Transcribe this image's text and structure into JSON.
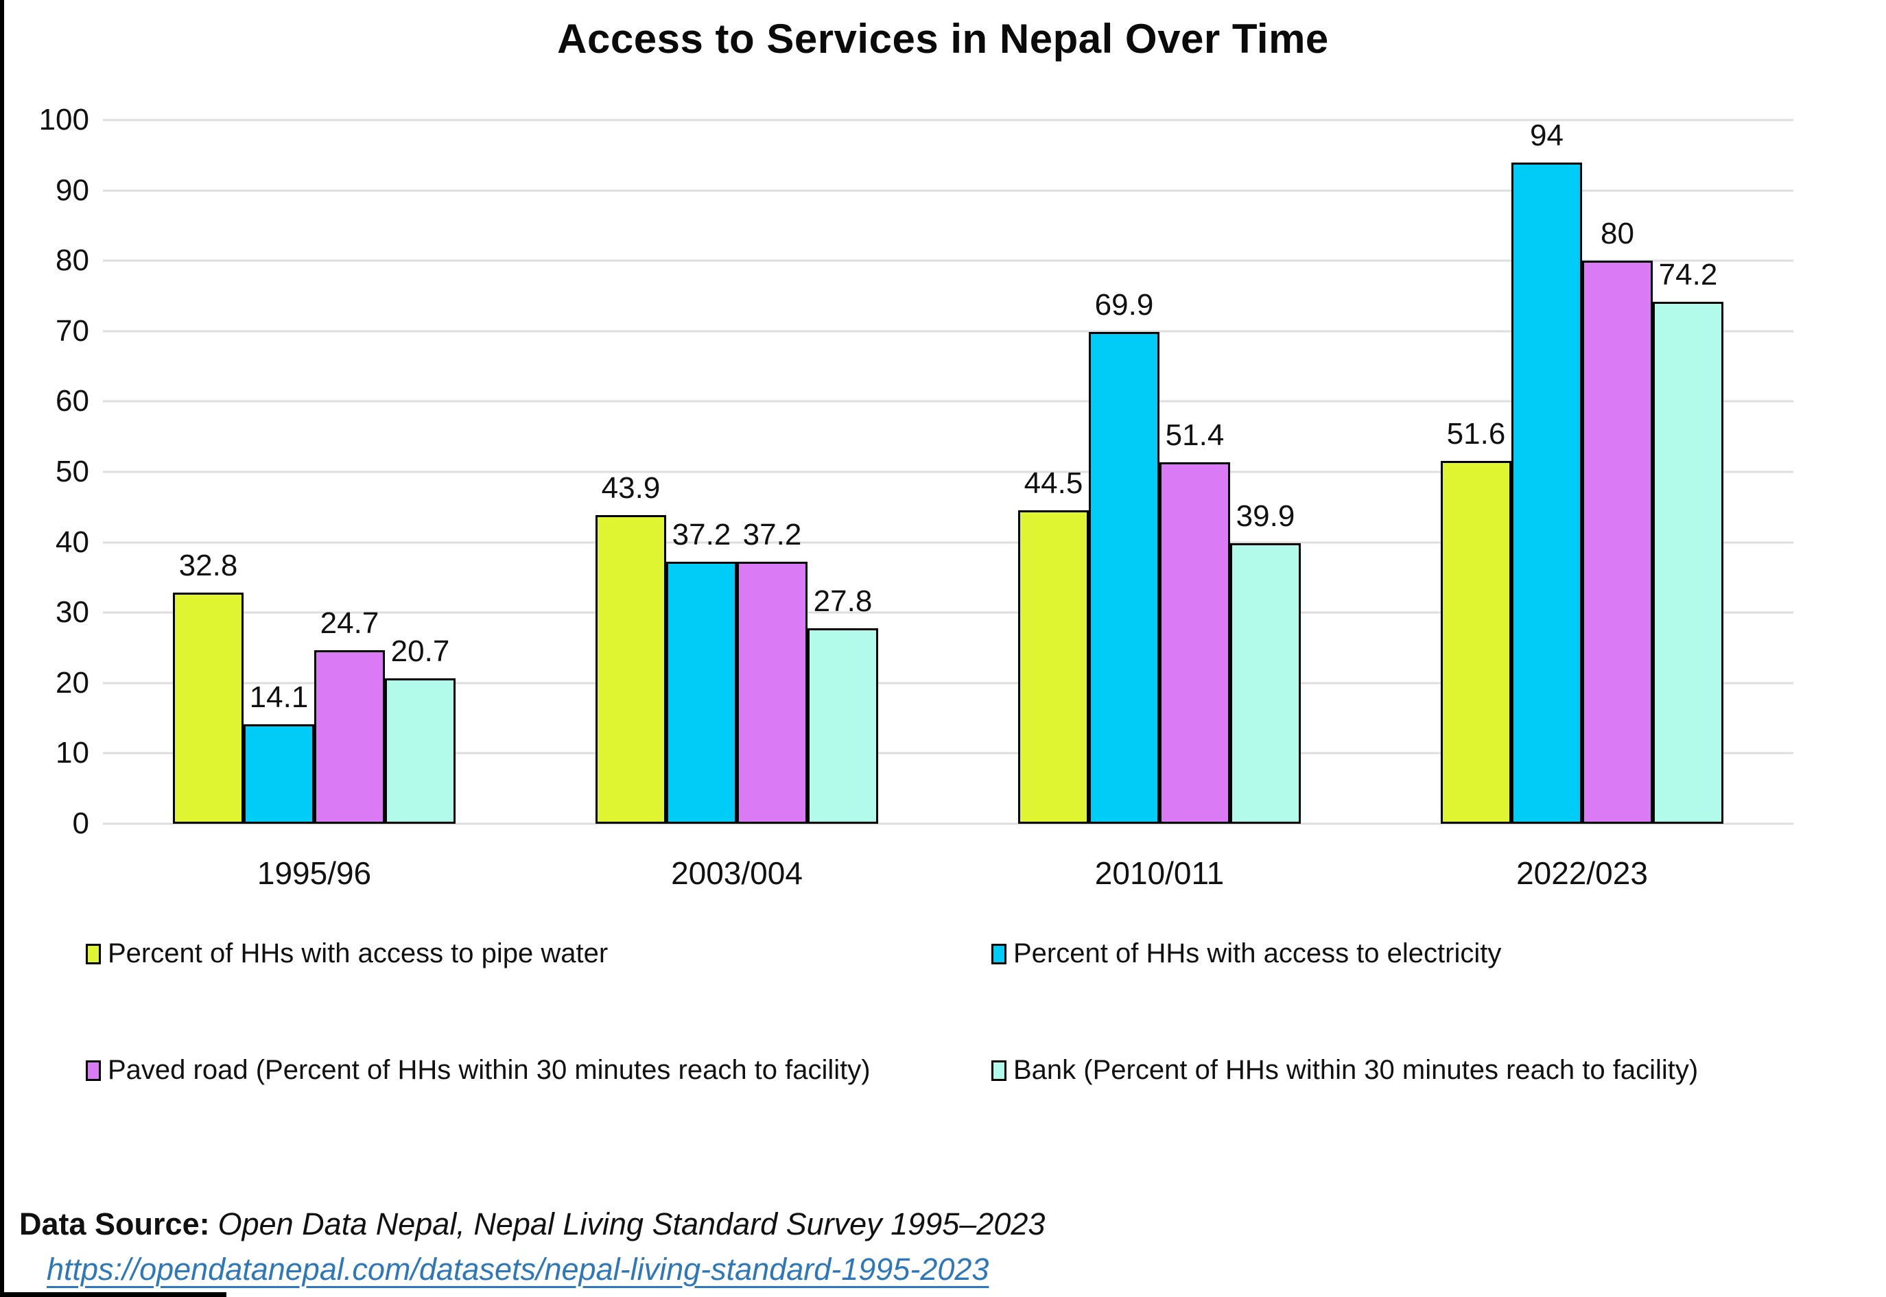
{
  "chart_data": {
    "type": "bar",
    "title": "Access to Services in Nepal Over Time",
    "categories": [
      "1995/96",
      "2003/004",
      "2010/011",
      "2022/023"
    ],
    "series": [
      {
        "key": "pipe-water",
        "name": "Percent of HHs with access to pipe water",
        "color": "#DFF532",
        "values": [
          32.8,
          43.9,
          44.5,
          51.6
        ],
        "labels": [
          "32.8",
          "43.9",
          "44.5",
          "51.6"
        ]
      },
      {
        "key": "electricity",
        "name": "Percent of HHs with access to electricity",
        "color": "#00CCF8",
        "values": [
          14.1,
          37.2,
          69.9,
          94
        ],
        "labels": [
          "14.1",
          "37.2",
          "69.9",
          "94"
        ]
      },
      {
        "key": "paved-road",
        "name": "Paved road (Percent of HHs within 30 minutes reach to facility)",
        "color": "#DB7AF5",
        "values": [
          24.7,
          37.2,
          51.4,
          80
        ],
        "labels": [
          "24.7",
          "37.2",
          "51.4",
          "80"
        ]
      },
      {
        "key": "bank",
        "name": "Bank (Percent of HHs within 30 minutes reach to facility)",
        "color": "#B2FBEB",
        "values": [
          20.7,
          27.8,
          39.9,
          74.2
        ],
        "labels": [
          "20.7",
          "27.8",
          "39.9",
          "74.2"
        ]
      }
    ],
    "y_ticks": [
      100,
      90,
      80,
      70,
      60,
      50,
      40,
      30,
      20,
      10,
      0
    ],
    "ylim": [
      0,
      100
    ],
    "grid": true,
    "legend_position": "bottom",
    "xlabel": "",
    "ylabel": ""
  },
  "footer": {
    "source_label": "Data Source:",
    "source_text": "Open Data Nepal, Nepal Living Standard Survey 1995–2023",
    "link_text": "https://opendatanepal.com/datasets/nepal-living-standard-1995-2023",
    "link_color": "#2E77B8"
  },
  "colors": {
    "background": "#FFFFFF",
    "grid": "#DEDEDE",
    "bar_border": "#000000"
  }
}
